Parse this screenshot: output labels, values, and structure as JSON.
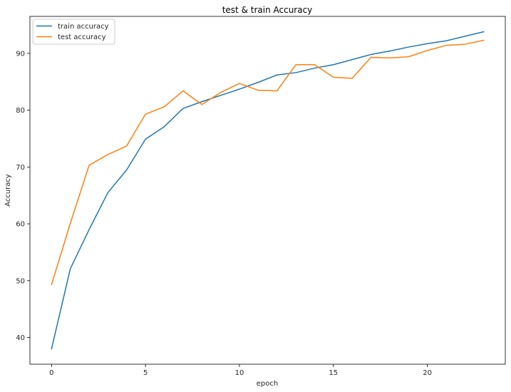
{
  "chart_data": {
    "type": "line",
    "title": "test & train Accuracy",
    "xlabel": "epoch",
    "ylabel": "Accuracy",
    "xlim": [
      -1.15,
      24.15
    ],
    "ylim": [
      35.3,
      96.5
    ],
    "xticks": [
      0,
      5,
      10,
      15,
      20
    ],
    "yticks": [
      40,
      50,
      60,
      70,
      80,
      90
    ],
    "grid": false,
    "legend_position": "top-left",
    "x": [
      0,
      1,
      2,
      3,
      4,
      5,
      6,
      7,
      8,
      9,
      10,
      11,
      12,
      13,
      14,
      15,
      16,
      17,
      18,
      19,
      20,
      21,
      22,
      23
    ],
    "series": [
      {
        "name": "train accuracy",
        "color": "#1f77b4",
        "values": [
          38.0,
          52.1,
          59.0,
          65.5,
          69.5,
          74.9,
          77.1,
          80.3,
          81.5,
          82.6,
          83.7,
          84.9,
          86.2,
          86.6,
          87.4,
          88.0,
          88.9,
          89.8,
          90.4,
          91.1,
          91.7,
          92.2,
          93.0,
          93.8
        ]
      },
      {
        "name": "test accuracy",
        "color": "#ff7f0e",
        "values": [
          49.3,
          60.1,
          70.3,
          72.2,
          73.7,
          79.3,
          80.6,
          83.4,
          81.0,
          83.1,
          84.7,
          83.5,
          83.4,
          88.0,
          88.0,
          85.8,
          85.6,
          89.3,
          89.2,
          89.4,
          90.5,
          91.4,
          91.6,
          92.3
        ]
      }
    ]
  }
}
